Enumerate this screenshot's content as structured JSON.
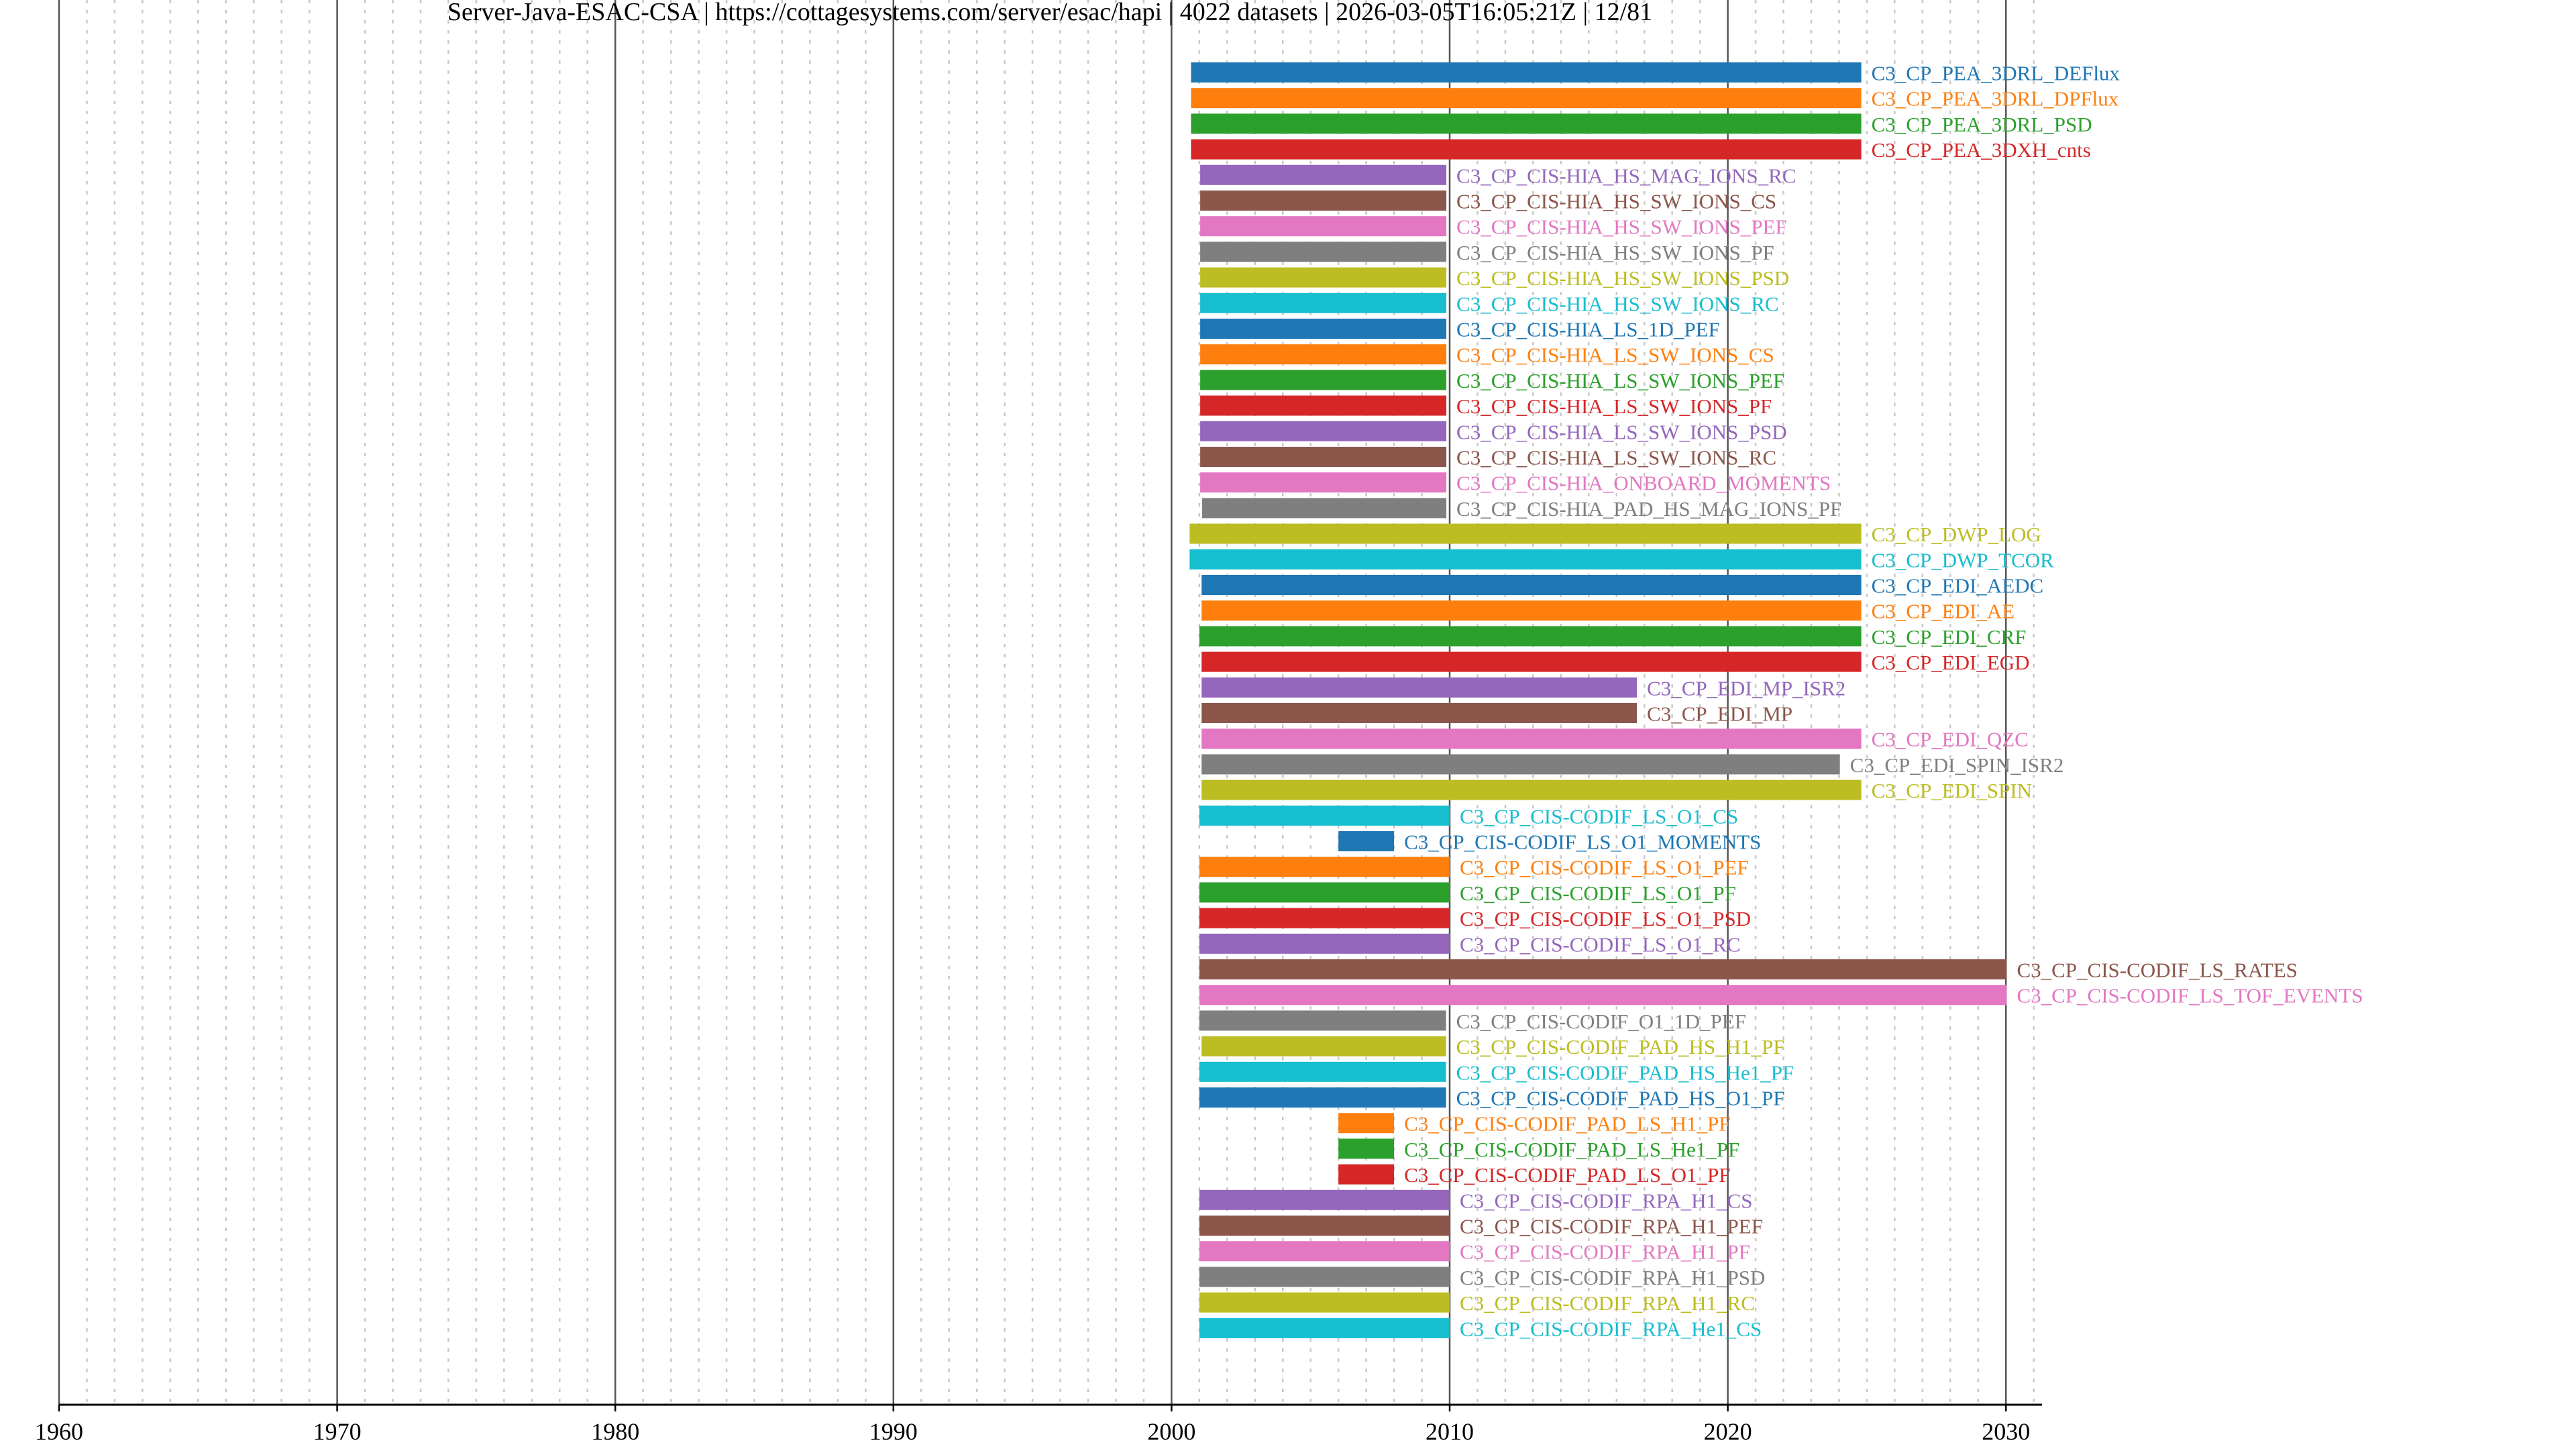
{
  "chart_data": {
    "type": "bar",
    "orientation": "horizontal-timeline",
    "title": "Server-Java-ESAC-CSA | https://cottagesystems.com/server/esac/hapi | 4022 datasets | 2026-03-05T16:05:21Z | 12/81",
    "xlabel": "",
    "ylabel": "",
    "xlim": [
      1960,
      2031.3
    ],
    "x_ticks": [
      "1960",
      "1970",
      "1980",
      "1990",
      "2000",
      "2010",
      "2020",
      "2030"
    ],
    "grid": "major solid every 10 years, minor dotted every year",
    "colors": [
      "#1f77b4",
      "#ff7f0e",
      "#2ca02c",
      "#d62728",
      "#9467bd",
      "#8c564b",
      "#e377c2",
      "#7f7f7f",
      "#bcbd22",
      "#17becf"
    ],
    "series": [
      {
        "name": "C3_CP_PEA_3DRL_DEFlux",
        "start": 2000.7,
        "end": 2024.8
      },
      {
        "name": "C3_CP_PEA_3DRL_DPFlux",
        "start": 2000.7,
        "end": 2024.8
      },
      {
        "name": "C3_CP_PEA_3DRL_PSD",
        "start": 2000.7,
        "end": 2024.8
      },
      {
        "name": "C3_CP_PEA_3DXH_cnts",
        "start": 2000.7,
        "end": 2024.8
      },
      {
        "name": "C3_CP_CIS-HIA_HS_MAG_IONS_RC",
        "start": 2001.03,
        "end": 2009.88
      },
      {
        "name": "C3_CP_CIS-HIA_HS_SW_IONS_CS",
        "start": 2001.03,
        "end": 2009.88
      },
      {
        "name": "C3_CP_CIS-HIA_HS_SW_IONS_PEF",
        "start": 2001.03,
        "end": 2009.88
      },
      {
        "name": "C3_CP_CIS-HIA_HS_SW_IONS_PF",
        "start": 2001.03,
        "end": 2009.88
      },
      {
        "name": "C3_CP_CIS-HIA_HS_SW_IONS_PSD",
        "start": 2001.03,
        "end": 2009.88
      },
      {
        "name": "C3_CP_CIS-HIA_HS_SW_IONS_RC",
        "start": 2001.03,
        "end": 2009.88
      },
      {
        "name": "C3_CP_CIS-HIA_LS_1D_PEF",
        "start": 2001.03,
        "end": 2009.88
      },
      {
        "name": "C3_CP_CIS-HIA_LS_SW_IONS_CS",
        "start": 2001.03,
        "end": 2009.88
      },
      {
        "name": "C3_CP_CIS-HIA_LS_SW_IONS_PEF",
        "start": 2001.03,
        "end": 2009.88
      },
      {
        "name": "C3_CP_CIS-HIA_LS_SW_IONS_PF",
        "start": 2001.03,
        "end": 2009.88
      },
      {
        "name": "C3_CP_CIS-HIA_LS_SW_IONS_PSD",
        "start": 2001.03,
        "end": 2009.88
      },
      {
        "name": "C3_CP_CIS-HIA_LS_SW_IONS_RC",
        "start": 2001.03,
        "end": 2009.88
      },
      {
        "name": "C3_CP_CIS-HIA_ONBOARD_MOMENTS",
        "start": 2001.03,
        "end": 2009.88
      },
      {
        "name": "C3_CP_CIS-HIA_PAD_HS_MAG_IONS_PF",
        "start": 2001.1,
        "end": 2009.88
      },
      {
        "name": "C3_CP_DWP_LOG",
        "start": 2000.65,
        "end": 2024.8
      },
      {
        "name": "C3_CP_DWP_TCOR",
        "start": 2000.65,
        "end": 2024.8
      },
      {
        "name": "C3_CP_EDI_AEDC",
        "start": 2001.08,
        "end": 2024.8
      },
      {
        "name": "C3_CP_EDI_AE",
        "start": 2001.08,
        "end": 2024.8
      },
      {
        "name": "C3_CP_EDI_CRF",
        "start": 2001.0,
        "end": 2024.8
      },
      {
        "name": "C3_CP_EDI_EGD",
        "start": 2001.08,
        "end": 2024.8
      },
      {
        "name": "C3_CP_EDI_MP_ISR2",
        "start": 2001.08,
        "end": 2016.73
      },
      {
        "name": "C3_CP_EDI_MP",
        "start": 2001.08,
        "end": 2016.73
      },
      {
        "name": "C3_CP_EDI_QZC",
        "start": 2001.08,
        "end": 2024.8
      },
      {
        "name": "C3_CP_EDI_SPIN_ISR2",
        "start": 2001.08,
        "end": 2024.03
      },
      {
        "name": "C3_CP_EDI_SPIN",
        "start": 2001.08,
        "end": 2024.8
      },
      {
        "name": "C3_CP_CIS-CODIF_LS_O1_CS",
        "start": 2001.0,
        "end": 2010.0
      },
      {
        "name": "C3_CP_CIS-CODIF_LS_O1_MOMENTS",
        "start": 2006.0,
        "end": 2008.0
      },
      {
        "name": "C3_CP_CIS-CODIF_LS_O1_PEF",
        "start": 2001.0,
        "end": 2010.0
      },
      {
        "name": "C3_CP_CIS-CODIF_LS_O1_PF",
        "start": 2001.0,
        "end": 2010.0
      },
      {
        "name": "C3_CP_CIS-CODIF_LS_O1_PSD",
        "start": 2001.0,
        "end": 2010.0
      },
      {
        "name": "C3_CP_CIS-CODIF_LS_O1_RC",
        "start": 2001.0,
        "end": 2010.0
      },
      {
        "name": "C3_CP_CIS-CODIF_LS_RATES",
        "start": 2001.0,
        "end": 2030.03
      },
      {
        "name": "C3_CP_CIS-CODIF_LS_TOF_EVENTS",
        "start": 2001.0,
        "end": 2030.03
      },
      {
        "name": "C3_CP_CIS-CODIF_O1_1D_PEF",
        "start": 2001.0,
        "end": 2009.87
      },
      {
        "name": "C3_CP_CIS-CODIF_PAD_HS_H1_PF",
        "start": 2001.08,
        "end": 2009.87
      },
      {
        "name": "C3_CP_CIS-CODIF_PAD_HS_He1_PF",
        "start": 2001.0,
        "end": 2009.87
      },
      {
        "name": "C3_CP_CIS-CODIF_PAD_HS_O1_PF",
        "start": 2001.0,
        "end": 2009.87
      },
      {
        "name": "C3_CP_CIS-CODIF_PAD_LS_H1_PF",
        "start": 2006.0,
        "end": 2008.0
      },
      {
        "name": "C3_CP_CIS-CODIF_PAD_LS_He1_PF",
        "start": 2006.0,
        "end": 2008.0
      },
      {
        "name": "C3_CP_CIS-CODIF_PAD_LS_O1_PF",
        "start": 2006.0,
        "end": 2008.0
      },
      {
        "name": "C3_CP_CIS-CODIF_RPA_H1_CS",
        "start": 2001.0,
        "end": 2010.0
      },
      {
        "name": "C3_CP_CIS-CODIF_RPA_H1_PEF",
        "start": 2001.0,
        "end": 2010.0
      },
      {
        "name": "C3_CP_CIS-CODIF_RPA_H1_PF",
        "start": 2001.0,
        "end": 2010.0
      },
      {
        "name": "C3_CP_CIS-CODIF_RPA_H1_PSD",
        "start": 2001.0,
        "end": 2010.0
      },
      {
        "name": "C3_CP_CIS-CODIF_RPA_H1_RC",
        "start": 2001.0,
        "end": 2010.0
      },
      {
        "name": "C3_CP_CIS-CODIF_RPA_He1_CS",
        "start": 2001.0,
        "end": 2010.0
      }
    ]
  }
}
